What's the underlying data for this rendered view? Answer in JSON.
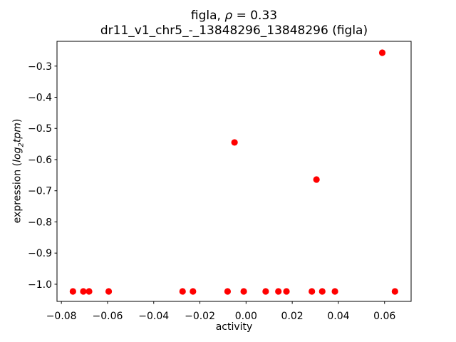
{
  "header": {
    "title_pre": "figla, ",
    "title_rho": "ρ",
    "title_post": " = 0.33"
  },
  "axes": {
    "xlabel": "activity",
    "ylabel_pre": "expression (",
    "ylabel_log": "log",
    "ylabel_sub": "2",
    "ylabel_tpm": "tpm",
    "ylabel_post": ")"
  },
  "chart_data": {
    "type": "scatter",
    "title": "figla, ρ = 0.33",
    "subtitle": "dr11_v1_chr5_-_13848296_13848296 (figla)",
    "xlabel": "activity",
    "ylabel": "expression (log₂tpm)",
    "rho": 0.33,
    "xlim": [
      -0.0819,
      0.0715
    ],
    "ylim": [
      -1.055,
      -0.2205
    ],
    "xticks": [
      -0.08,
      -0.06,
      -0.04,
      -0.02,
      0.0,
      0.02,
      0.04,
      0.06
    ],
    "xtick_labels": [
      "−0.08",
      "−0.06",
      "−0.04",
      "−0.02",
      "0.00",
      "0.02",
      "0.04",
      "0.06"
    ],
    "yticks": [
      -0.3,
      -0.4,
      -0.5,
      -0.6,
      -0.7,
      -0.8,
      -0.9,
      -1.0
    ],
    "ytick_labels": [
      "−0.3",
      "−0.4",
      "−0.5",
      "−0.6",
      "−0.7",
      "−0.8",
      "−0.9",
      "−1.0"
    ],
    "grid": false,
    "legend": false,
    "marker_color": "#ff0000",
    "frame_color": "#000000",
    "points": [
      [
        -0.075,
        -1.023
      ],
      [
        -0.0705,
        -1.023
      ],
      [
        -0.068,
        -1.023
      ],
      [
        -0.0595,
        -1.023
      ],
      [
        -0.0275,
        -1.023
      ],
      [
        -0.023,
        -1.023
      ],
      [
        -0.008,
        -1.023
      ],
      [
        -0.001,
        -1.023
      ],
      [
        0.0085,
        -1.023
      ],
      [
        0.014,
        -1.023
      ],
      [
        0.0175,
        -1.023
      ],
      [
        0.0285,
        -1.023
      ],
      [
        0.033,
        -1.023
      ],
      [
        0.0385,
        -1.023
      ],
      [
        0.0645,
        -1.023
      ],
      [
        -0.005,
        -0.545
      ],
      [
        0.0305,
        -0.664
      ],
      [
        0.059,
        -0.257
      ]
    ]
  }
}
